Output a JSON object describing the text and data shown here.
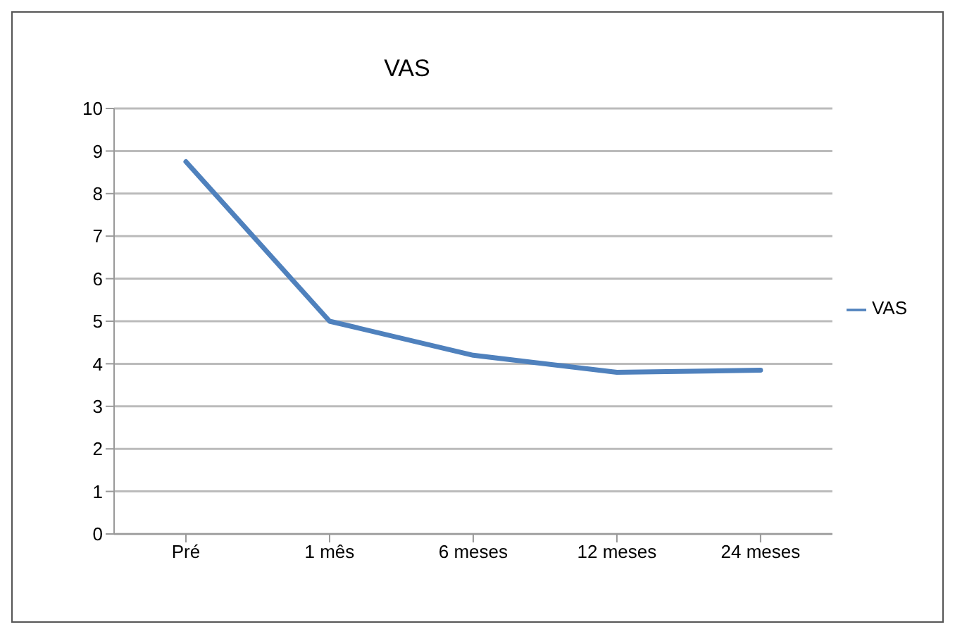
{
  "chart_data": {
    "type": "line",
    "title": "VAS",
    "categories": [
      "Pré",
      "1 mês",
      "6 meses",
      "12 meses",
      "24 meses"
    ],
    "series": [
      {
        "name": "VAS",
        "color": "#4f81bd",
        "values": [
          8.75,
          5.0,
          4.2,
          3.8,
          3.85
        ]
      }
    ],
    "ylim": [
      0,
      10
    ],
    "yticks": [
      0,
      1,
      2,
      3,
      4,
      5,
      6,
      7,
      8,
      9,
      10
    ],
    "grid": "y",
    "legend": "right",
    "marker": "none",
    "line_style": "solid"
  }
}
